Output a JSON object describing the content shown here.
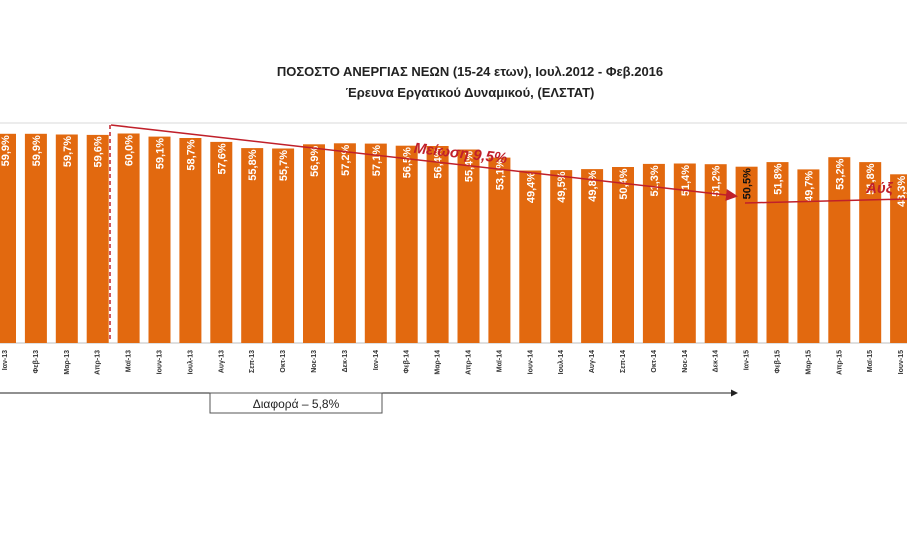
{
  "chart_data": {
    "type": "bar",
    "title": "ΠΟΣΟΣΤΟ ΑΝΕΡΓΙΑΣ ΝΕΩΝ (15-24 ετων), Ιουλ.2012 - Φεβ.2016",
    "subtitle": "Έρευνα Εργατικού Δυναμικού, (ΕΛΣΤΑΤ)",
    "xlabel": "",
    "ylabel": "",
    "ylim": [
      0,
      63
    ],
    "grid": false,
    "legend": "none",
    "bar_color": "#e2690f",
    "categories": [
      "Ιαν-13",
      "Φεβ-13",
      "Μαρ-13",
      "Απρ-13",
      "Μαϊ-13",
      "Ιουν-13",
      "Ιουλ-13",
      "Αυγ-13",
      "Σεπ-13",
      "Οκτ-13",
      "Νοε-13",
      "Δεκ-13",
      "Ιαν-14",
      "Φεβ-14",
      "Μαρ-14",
      "Απρ-14",
      "Μαϊ-14",
      "Ιουν-14",
      "Ιουλ-14",
      "Αυγ-14",
      "Σεπ-14",
      "Οκτ-14",
      "Νοε-14",
      "Δεκ-14",
      "Ιαν-15",
      "Φεβ-15",
      "Μαρ-15",
      "Απρ-15",
      "Μαϊ-15",
      "Ιουν-15",
      ""
    ],
    "values": [
      59.9,
      59.9,
      59.7,
      59.6,
      60.0,
      59.1,
      58.7,
      57.6,
      55.8,
      55.7,
      56.9,
      57.2,
      57.1,
      56.5,
      56.4,
      55.4,
      53.1,
      49.4,
      49.5,
      49.8,
      50.4,
      51.3,
      51.4,
      51.2,
      50.5,
      51.8,
      49.7,
      53.2,
      51.8,
      48.3,
      49.0
    ],
    "data_labels": [
      "59,9%",
      "59,9%",
      "59,7%",
      "59,6%",
      "60,0%",
      "59,1%",
      "58,7%",
      "57,6%",
      "55,8%",
      "55,7%",
      "56,9%",
      "57,2%",
      "57,1%",
      "56,5%",
      "56,4%",
      "55,4%",
      "53,1%",
      "49,4%",
      "49,5%",
      "49,8%",
      "50,4%",
      "51,3%",
      "51,4%",
      "51,2%",
      "50,5%",
      "51,8%",
      "49,7%",
      "53,2%",
      "51,8%",
      "48,3%",
      ""
    ],
    "highlight_index": 24,
    "annotations": {
      "decrease_label": "Μείωση  9,5%",
      "increase_label": "Αύξ",
      "difference_label": "Διαφορά   – 5,8%",
      "arrow_color": "#c0202a"
    }
  }
}
